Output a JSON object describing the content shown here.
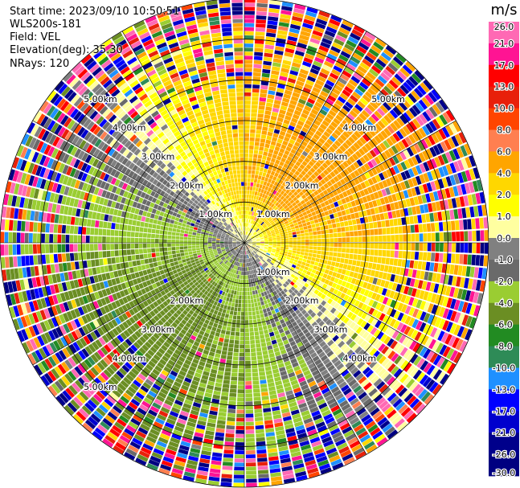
{
  "info": {
    "start_time": "Start time: 2023/09/10 10:50:51",
    "instrument": "WLS200s-181",
    "field": "Field: VEL",
    "elevation": "Elevation(deg): 35.30",
    "nrays": "NRays: 120"
  },
  "chart_data": {
    "type": "heatmap",
    "projection": "polar-ppi",
    "field": "VEL",
    "units": "m/s",
    "n_rays": 120,
    "max_range_km": 6.0,
    "range_rings_km": [
      1.0,
      2.0,
      3.0,
      4.0,
      5.0,
      6.0
    ],
    "ring_labels": [
      {
        "text": "1.00km",
        "ring_km": 1.0,
        "quadrant": "nw"
      },
      {
        "text": "1.00km",
        "ring_km": 1.0,
        "quadrant": "ne"
      },
      {
        "text": "1.00km",
        "ring_km": 1.0,
        "quadrant": "se"
      },
      {
        "text": "2.00km",
        "ring_km": 2.0,
        "quadrant": "nw"
      },
      {
        "text": "2.00km",
        "ring_km": 2.0,
        "quadrant": "ne"
      },
      {
        "text": "2.00km",
        "ring_km": 2.0,
        "quadrant": "sw"
      },
      {
        "text": "2.00km",
        "ring_km": 2.0,
        "quadrant": "se"
      },
      {
        "text": "3.00km",
        "ring_km": 3.0,
        "quadrant": "nw"
      },
      {
        "text": "3.00km",
        "ring_km": 3.0,
        "quadrant": "ne"
      },
      {
        "text": "3.00km",
        "ring_km": 3.0,
        "quadrant": "sw"
      },
      {
        "text": "3.00km",
        "ring_km": 3.0,
        "quadrant": "se"
      },
      {
        "text": "4.00km",
        "ring_km": 4.0,
        "quadrant": "nw"
      },
      {
        "text": "4.00km",
        "ring_km": 4.0,
        "quadrant": "ne"
      },
      {
        "text": "4.00km",
        "ring_km": 4.0,
        "quadrant": "sw"
      },
      {
        "text": "4.00km",
        "ring_km": 4.0,
        "quadrant": "se"
      },
      {
        "text": "5.00km",
        "ring_km": 5.0,
        "quadrant": "nw"
      },
      {
        "text": "5.00km",
        "ring_km": 5.0,
        "quadrant": "ne"
      },
      {
        "text": "5.00km",
        "ring_km": 5.0,
        "quadrant": "sw"
      }
    ],
    "colorbar": {
      "title": "m/s",
      "ticks": [
        26.0,
        21.0,
        17.0,
        13.0,
        10.0,
        8.0,
        6.0,
        4.0,
        2.0,
        1.0,
        0.0,
        -1.0,
        -2.0,
        -4.0,
        -6.0,
        -8.0,
        -10.0,
        -13.0,
        -17.0,
        -21.0,
        -26.0,
        -30.0
      ],
      "tick_labels": [
        "26.0",
        "21.0",
        "17.0",
        "13.0",
        "10.0",
        "8.0",
        "6.0",
        "4.0",
        "2.0",
        "1.0",
        "0.0",
        "-1.0",
        "-2.0",
        "-4.0",
        "-6.0",
        "-8.0",
        "-10.0",
        "-13.0",
        "-17.0",
        "-21.0",
        "-26.0",
        "-30.0"
      ],
      "colors": [
        "#ff69b4",
        "#ff1493",
        "#ff0000",
        "#e8200a",
        "#ff4500",
        "#ff7f50",
        "#ffa500",
        "#ffd700",
        "#ffff00",
        "#ffffa0",
        "#808080",
        "#6a6a6a",
        "#9acd32",
        "#6b8e23",
        "#228b22",
        "#2e8b57",
        "#1e90ff",
        "#0000ff",
        "#0000cd",
        "#00008b",
        "#000080"
      ]
    }
  }
}
